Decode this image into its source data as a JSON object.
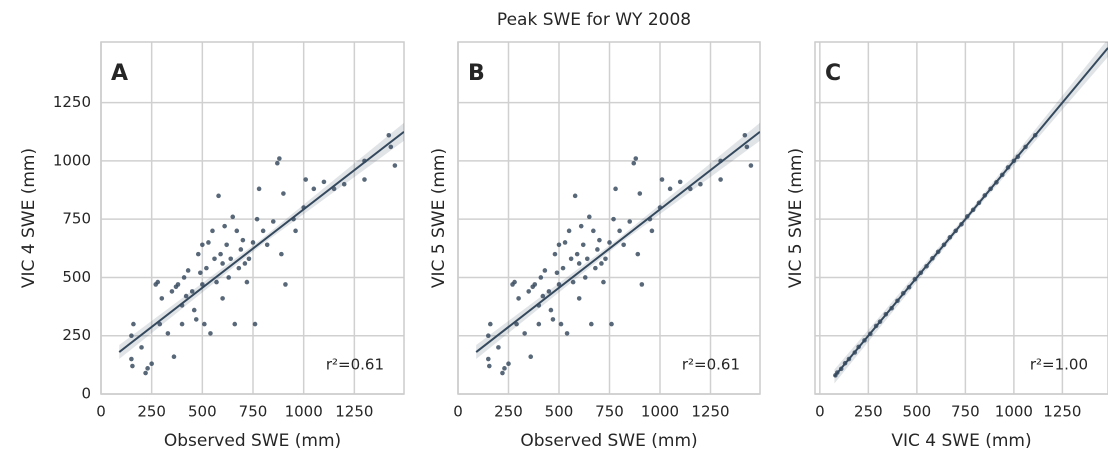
{
  "title": "Peak SWE for WY 2008",
  "chart_data": [
    {
      "type": "scatter",
      "panel_label": "A",
      "xlabel": "Observed SWE (mm)",
      "ylabel": "VIC 4 SWE (mm)",
      "annotation": "r²=0.61",
      "xlim": [
        0,
        1495
      ],
      "ylim": [
        0,
        1510
      ],
      "xticks": [
        0,
        250,
        500,
        750,
        1000,
        1250
      ],
      "yticks": [
        0,
        250,
        500,
        750,
        1000,
        1250
      ],
      "show_ytick_labels": true,
      "grid": true,
      "color": "#3b4d61",
      "x": [
        150,
        150,
        155,
        160,
        200,
        220,
        230,
        250,
        270,
        280,
        290,
        300,
        330,
        350,
        360,
        370,
        380,
        400,
        400,
        410,
        420,
        430,
        450,
        460,
        470,
        480,
        490,
        500,
        500,
        510,
        520,
        530,
        540,
        550,
        560,
        570,
        580,
        590,
        600,
        600,
        610,
        620,
        630,
        640,
        650,
        660,
        670,
        680,
        690,
        700,
        710,
        720,
        730,
        750,
        760,
        770,
        780,
        800,
        820,
        850,
        870,
        880,
        890,
        900,
        910,
        950,
        960,
        1000,
        1010,
        1050,
        1100,
        1150,
        1200,
        1300,
        1300,
        1420,
        1450,
        1430
      ],
      "y": [
        250,
        150,
        120,
        300,
        200,
        90,
        110,
        130,
        470,
        480,
        300,
        410,
        260,
        440,
        160,
        460,
        470,
        300,
        380,
        500,
        420,
        530,
        440,
        360,
        320,
        600,
        520,
        470,
        640,
        300,
        540,
        650,
        260,
        700,
        580,
        480,
        850,
        600,
        560,
        410,
        720,
        640,
        500,
        580,
        760,
        300,
        700,
        540,
        620,
        660,
        560,
        480,
        580,
        650,
        300,
        750,
        880,
        700,
        640,
        740,
        990,
        1010,
        600,
        860,
        470,
        750,
        700,
        800,
        920,
        880,
        910,
        880,
        900,
        1000,
        920,
        1110,
        980,
        1060
      ],
      "fit": {
        "x": [
          90,
          1495
        ],
        "y": [
          180,
          1125
        ],
        "color": "#34495e"
      }
    },
    {
      "type": "scatter",
      "panel_label": "B",
      "xlabel": "Observed SWE (mm)",
      "ylabel": "VIC 5 SWE (mm)",
      "annotation": "r²=0.61",
      "xlim": [
        0,
        1495
      ],
      "ylim": [
        0,
        1510
      ],
      "xticks": [
        0,
        250,
        500,
        750,
        1000,
        1250
      ],
      "yticks": [
        0,
        250,
        500,
        750,
        1000,
        1250
      ],
      "show_ytick_labels": false,
      "grid": true,
      "color": "#3b4d61",
      "x": [
        150,
        150,
        155,
        160,
        200,
        220,
        230,
        250,
        270,
        280,
        290,
        300,
        330,
        350,
        360,
        370,
        380,
        400,
        400,
        410,
        420,
        430,
        450,
        460,
        470,
        480,
        490,
        500,
        500,
        510,
        520,
        530,
        540,
        550,
        560,
        570,
        580,
        590,
        600,
        600,
        610,
        620,
        630,
        640,
        650,
        660,
        670,
        680,
        690,
        700,
        710,
        720,
        730,
        750,
        760,
        770,
        780,
        800,
        820,
        850,
        870,
        880,
        890,
        900,
        910,
        950,
        960,
        1000,
        1010,
        1050,
        1100,
        1150,
        1200,
        1300,
        1300,
        1420,
        1450,
        1430
      ],
      "y": [
        250,
        150,
        120,
        300,
        200,
        90,
        110,
        130,
        470,
        480,
        300,
        410,
        260,
        440,
        160,
        460,
        470,
        300,
        380,
        500,
        420,
        530,
        440,
        360,
        320,
        600,
        520,
        470,
        640,
        300,
        540,
        650,
        260,
        700,
        580,
        480,
        850,
        600,
        560,
        410,
        720,
        640,
        500,
        580,
        760,
        300,
        700,
        540,
        620,
        660,
        560,
        480,
        580,
        650,
        300,
        750,
        880,
        700,
        640,
        740,
        990,
        1010,
        600,
        860,
        470,
        750,
        700,
        800,
        920,
        880,
        910,
        880,
        900,
        1000,
        920,
        1110,
        980,
        1060
      ],
      "fit": {
        "x": [
          90,
          1495
        ],
        "y": [
          180,
          1125
        ],
        "color": "#34495e"
      }
    },
    {
      "type": "scatter",
      "panel_label": "C",
      "xlabel": "VIC 4 SWE (mm)",
      "ylabel": "VIC 5 SWE (mm)",
      "annotation": "r²=1.00",
      "xlim": [
        -25,
        1485
      ],
      "ylim": [
        0,
        1510
      ],
      "xticks": [
        0,
        250,
        500,
        750,
        1000,
        1250
      ],
      "yticks": [
        0,
        250,
        500,
        750,
        1000,
        1250
      ],
      "show_ytick_labels": false,
      "grid": true,
      "color": "#3b4d61",
      "x": [
        80,
        90,
        110,
        130,
        150,
        180,
        200,
        230,
        260,
        290,
        310,
        340,
        370,
        400,
        430,
        460,
        490,
        520,
        550,
        580,
        610,
        640,
        670,
        700,
        730,
        760,
        790,
        820,
        850,
        880,
        910,
        940,
        970,
        1000,
        1020,
        1060,
        1110
      ],
      "y": [
        80,
        92,
        108,
        132,
        150,
        178,
        202,
        230,
        258,
        292,
        310,
        342,
        368,
        400,
        432,
        458,
        492,
        520,
        548,
        582,
        610,
        640,
        672,
        700,
        728,
        762,
        790,
        820,
        852,
        880,
        908,
        940,
        972,
        1000,
        1018,
        1060,
        1110
      ],
      "fit": {
        "x": [
          75,
          1485
        ],
        "y": [
          75,
          1485
        ],
        "color": "#34495e"
      }
    }
  ]
}
